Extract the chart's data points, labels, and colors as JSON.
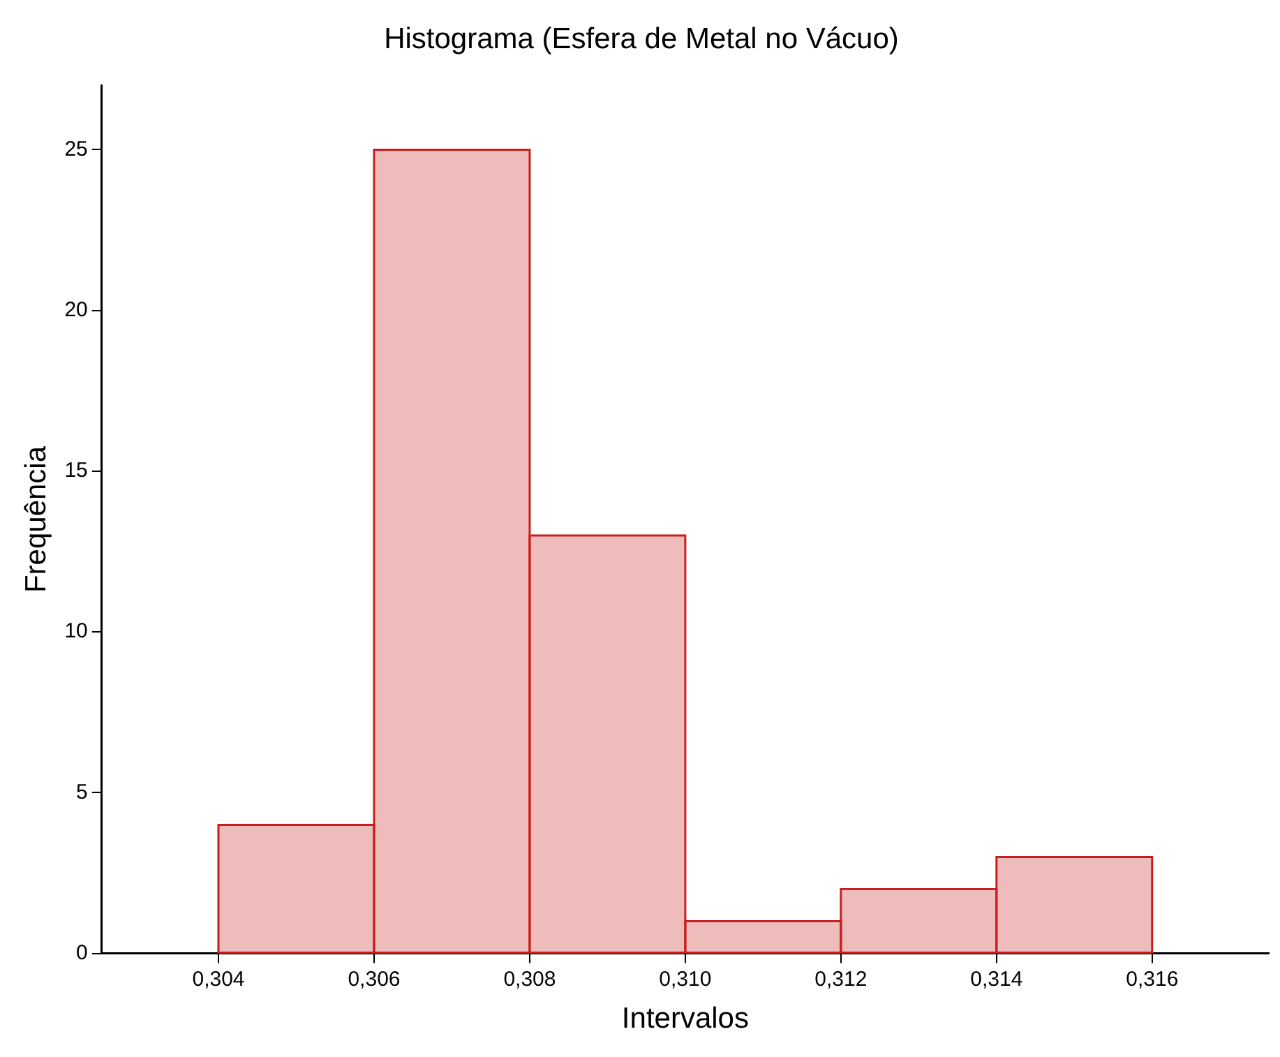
{
  "chart_data": {
    "type": "histogram",
    "title": "Histograma (Esfera de Metal no Vácuo)",
    "xlabel": "Intervalos",
    "ylabel": "Frequência",
    "bins": [
      0.304,
      0.306,
      0.308,
      0.31,
      0.312,
      0.314,
      0.316
    ],
    "values": [
      4,
      25,
      13,
      1,
      2,
      3
    ],
    "color": "#c81e1e",
    "xlim": [
      0.3025,
      0.3175
    ],
    "xticks": [
      {
        "value": 0.304,
        "label": "0,304"
      },
      {
        "value": 0.306,
        "label": "0,306"
      },
      {
        "value": 0.308,
        "label": "0,308"
      },
      {
        "value": 0.31,
        "label": "0,310"
      },
      {
        "value": 0.312,
        "label": "0,312"
      },
      {
        "value": 0.314,
        "label": "0,314"
      },
      {
        "value": 0.316,
        "label": "0,316"
      }
    ],
    "ylim": [
      0,
      27
    ],
    "yticks": [
      0,
      5,
      10,
      15,
      20,
      25
    ],
    "grid": false,
    "legend": false
  }
}
